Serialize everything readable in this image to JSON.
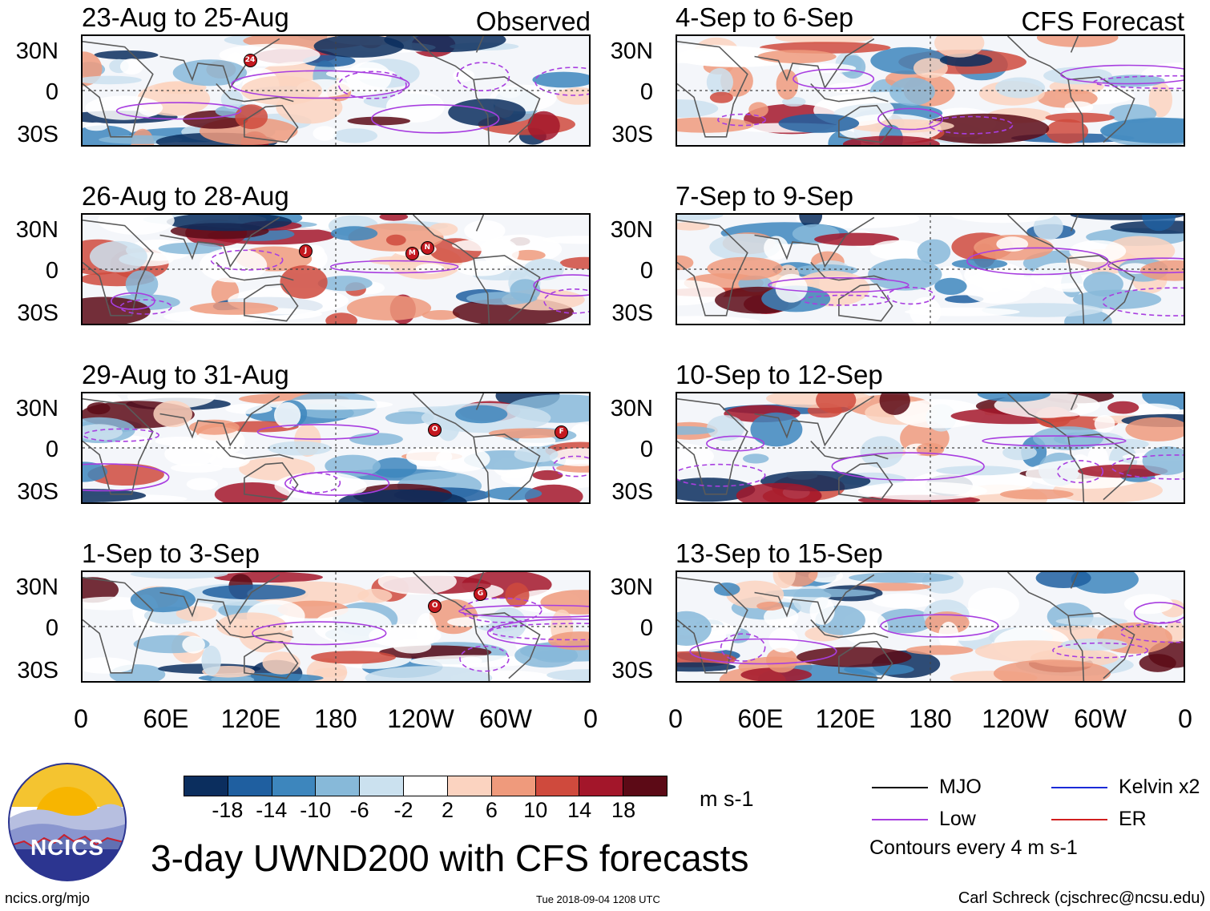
{
  "labels": {
    "observed": "Observed",
    "forecast": "CFS Forecast"
  },
  "panels": [
    {
      "title": "23-Aug to 25-Aug",
      "storms": [
        "24"
      ]
    },
    {
      "title": "26-Aug to 28-Aug",
      "storms": [
        "J",
        "M",
        "N"
      ]
    },
    {
      "title": "29-Aug to 31-Aug",
      "storms": [
        "O",
        "F"
      ]
    },
    {
      "title": "1-Sep to 3-Sep",
      "storms": [
        "O",
        "G"
      ]
    },
    {
      "title": "4-Sep to 6-Sep",
      "storms": []
    },
    {
      "title": "7-Sep to 9-Sep",
      "storms": []
    },
    {
      "title": "10-Sep to 12-Sep",
      "storms": []
    },
    {
      "title": "13-Sep to 15-Sep",
      "storms": []
    }
  ],
  "axes": {
    "lat_ticks": [
      "30N",
      "0",
      "30S"
    ],
    "lon_ticks": [
      "0",
      "60E",
      "120E",
      "180",
      "120W",
      "60W",
      "0"
    ]
  },
  "colorbar": {
    "ticks": [
      "-18",
      "-14",
      "-10",
      "-6",
      "-2",
      "2",
      "6",
      "10",
      "14",
      "18"
    ],
    "colors": [
      "#0b2e5e",
      "#1f5fa0",
      "#3d86bd",
      "#87b9d9",
      "#cbe1ef",
      "#ffffff",
      "#fbd3c0",
      "#ef9a7c",
      "#cf4a3d",
      "#a3162a",
      "#5c0a16"
    ],
    "units": "m s-1"
  },
  "legend": {
    "items": [
      {
        "label": "MJO",
        "color": "#000000"
      },
      {
        "label": "Kelvin x2",
        "color": "#1a2bd8"
      },
      {
        "label": "Low",
        "color": "#a83ee0"
      },
      {
        "label": "ER",
        "color": "#d21f1f"
      }
    ],
    "contour_note": "Contours every 4 m s-1"
  },
  "logo": {
    "text": "NCICS"
  },
  "title": "3-day UWND200 with CFS forecasts",
  "footer": {
    "url": "ncics.org/mjo",
    "timestamp": "Tue 2018-09-04 1208 UTC",
    "author": "Carl Schreck (cjschrec@ncsu.edu)"
  }
}
